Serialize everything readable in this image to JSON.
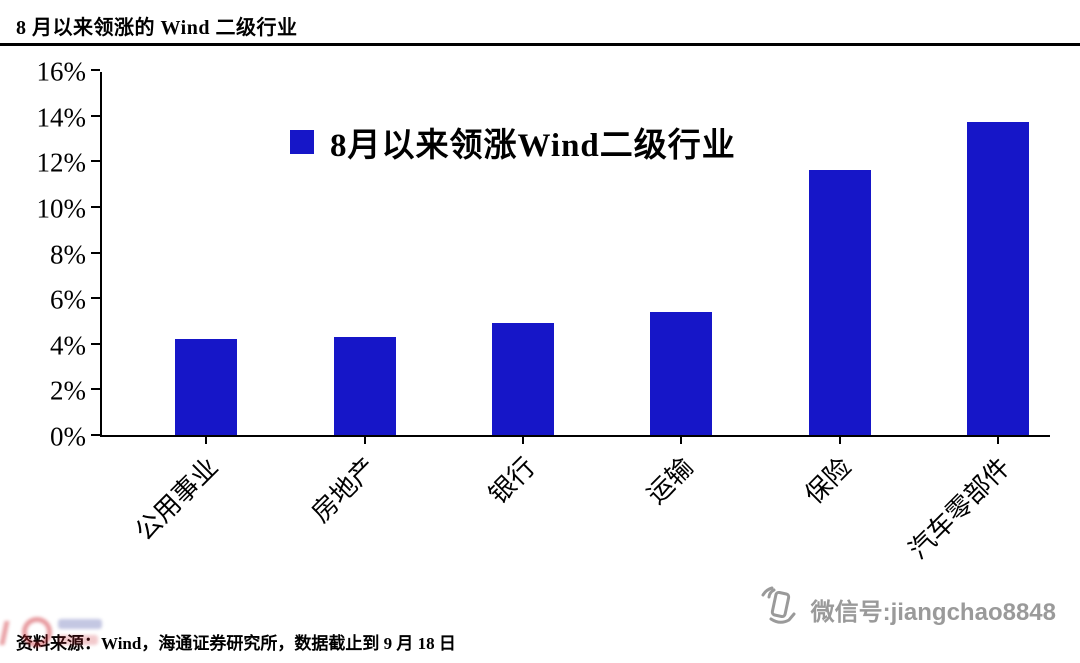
{
  "header": {
    "title": "8 月以来领涨的 Wind 二级行业"
  },
  "chart_data": {
    "type": "bar",
    "title": "8 月以来领涨的 Wind 二级行业",
    "legend": "8月以来领涨Wind二级行业",
    "legend_position": "upper-center-left",
    "categories": [
      "公用事业",
      "房地产",
      "银行",
      "运输",
      "保险",
      "汽车零部件"
    ],
    "values": [
      4.2,
      4.3,
      4.9,
      5.4,
      11.6,
      13.7
    ],
    "unit": "%",
    "xlabel": "",
    "ylabel": "",
    "ylim": [
      0,
      16
    ],
    "ytick_step": 2,
    "ytick_suffix": "%",
    "grid": false,
    "bar_color": "#1616c8",
    "axis_color": "#000000"
  },
  "footer": {
    "source": "资料来源：Wind，海通证券研究所，数据截止到 9 月 18 日"
  },
  "watermark": {
    "wechat_label": "微信号:jiangchao8848",
    "wechat_icon": "hand-phone-icon",
    "color": "#9a9a9a"
  }
}
